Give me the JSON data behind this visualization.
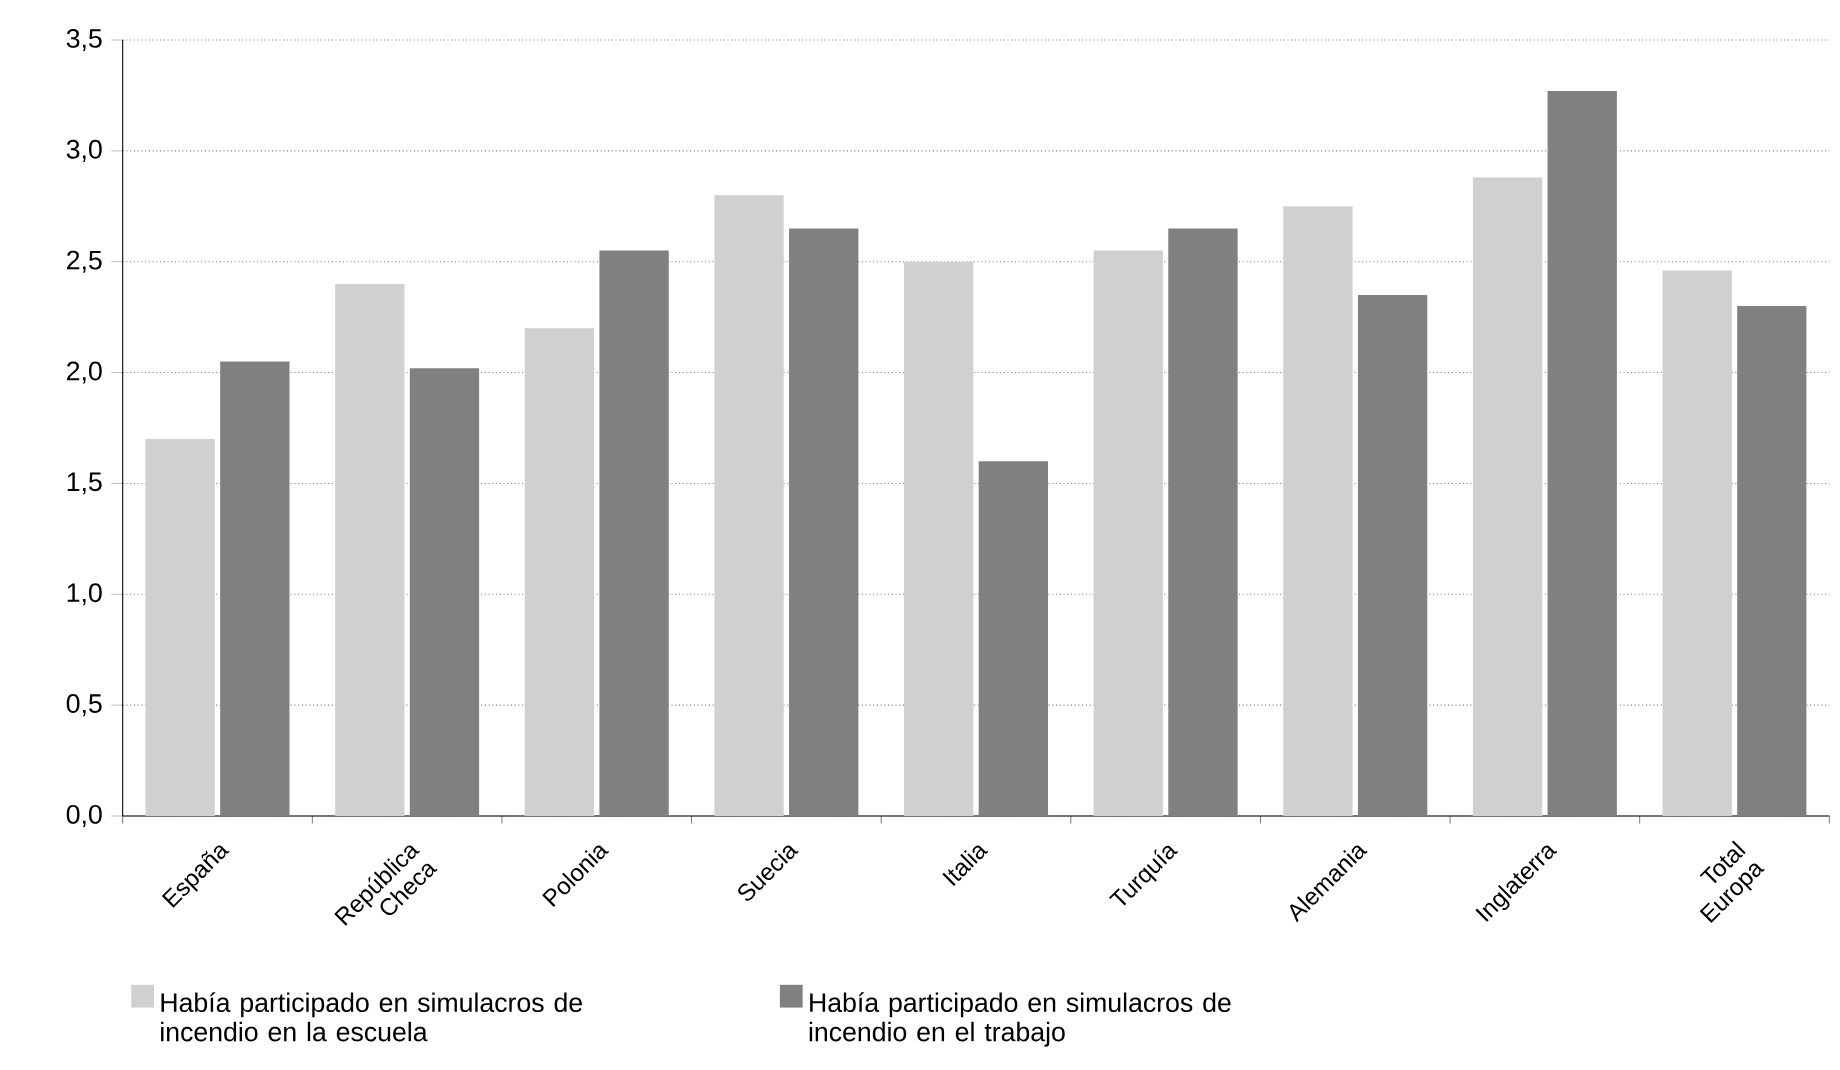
{
  "chart_data": {
    "type": "bar",
    "categories": [
      "España",
      "República Checa",
      "Polonia",
      "Suecia",
      "Italia",
      "Turquía",
      "Alemania",
      "Inglaterra",
      "Total Europa"
    ],
    "series": [
      {
        "name": "Había participado en simulacros de incendio en la escuela",
        "color": "#d0d0d0",
        "values": [
          1.7,
          2.4,
          2.2,
          2.8,
          2.5,
          2.55,
          2.75,
          2.88,
          2.46
        ]
      },
      {
        "name": "Había participado en simulacros de incendio en el trabajo",
        "color": "#808080",
        "values": [
          2.05,
          2.02,
          2.55,
          2.65,
          1.6,
          2.65,
          2.35,
          3.27,
          2.3
        ]
      }
    ],
    "ylim": [
      0,
      3.5
    ],
    "yticks": [
      {
        "value": 0,
        "label": "0,0"
      },
      {
        "value": 0.5,
        "label": "0,5"
      },
      {
        "value": 1,
        "label": "1,0"
      },
      {
        "value": 1.5,
        "label": "1,5"
      },
      {
        "value": 2,
        "label": "2,0"
      },
      {
        "value": 2.5,
        "label": "2,5"
      },
      {
        "value": 3,
        "label": "3,0"
      },
      {
        "value": 3.5,
        "label": "3,5"
      }
    ],
    "grid": "y",
    "legend": "bottom"
  }
}
